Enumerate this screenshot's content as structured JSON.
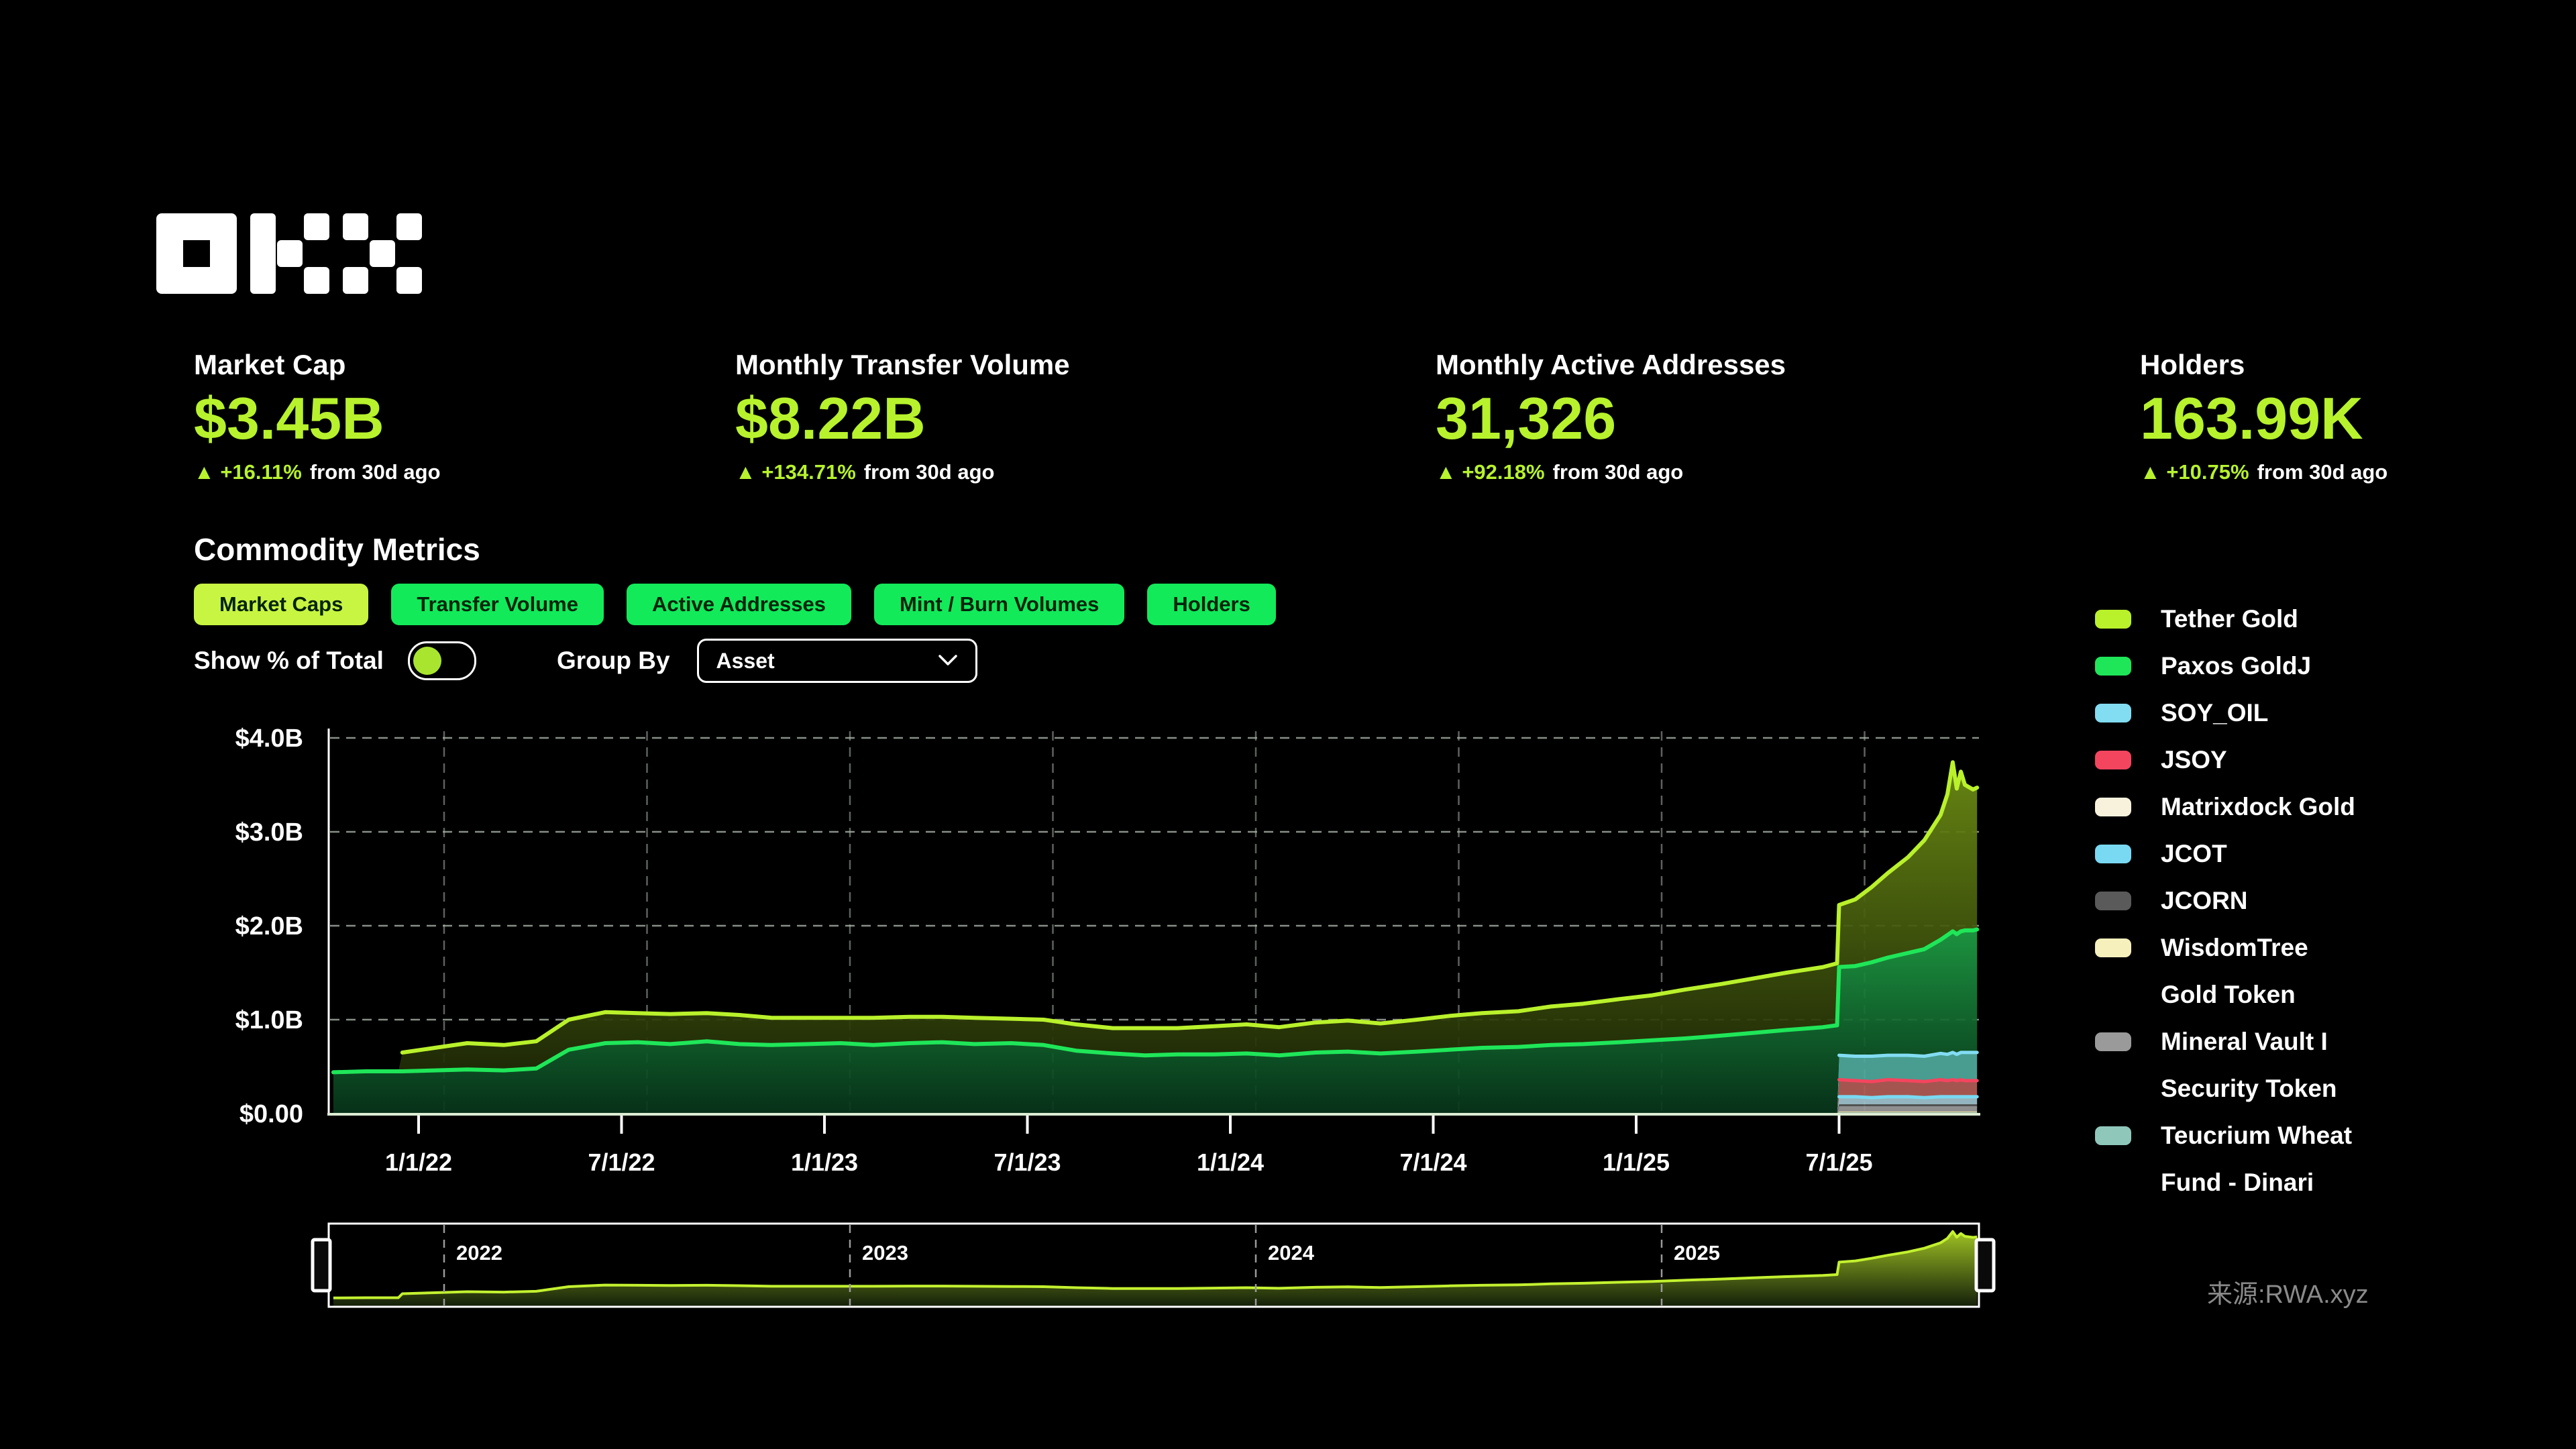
{
  "brand": {
    "name": "OKX"
  },
  "stats": [
    {
      "title": "Market Cap",
      "value": "$3.45B",
      "arrow": "▲",
      "delta": "+16.11%",
      "delta_suffix": "from 30d ago"
    },
    {
      "title": "Monthly Transfer Volume",
      "value": "$8.22B",
      "arrow": "▲",
      "delta": "+134.71%",
      "delta_suffix": "from 30d ago"
    },
    {
      "title": "Monthly Active Addresses",
      "value": "31,326",
      "arrow": "▲",
      "delta": "+92.18%",
      "delta_suffix": "from 30d ago"
    },
    {
      "title": "Holders",
      "value": "163.99K",
      "arrow": "▲",
      "delta": "+10.75%",
      "delta_suffix": "from 30d ago"
    }
  ],
  "section": {
    "title": "Commodity Metrics"
  },
  "tabs": [
    {
      "label": "Market Caps",
      "selected": true
    },
    {
      "label": "Transfer Volume",
      "selected": false
    },
    {
      "label": "Active Addresses",
      "selected": false
    },
    {
      "label": "Mint / Burn Volumes",
      "selected": false
    },
    {
      "label": "Holders",
      "selected": false
    }
  ],
  "controls": {
    "toggle_label": "Show % of Total",
    "toggle_on": false,
    "group_by_label": "Group By",
    "group_by_value": "Asset"
  },
  "source": "来源:RWA.xyz",
  "colors": {
    "background": "#000000",
    "accent": "#b7f22d",
    "tab_green": "#12ea5a",
    "tab_selected": "#c8f542",
    "muted_text": "#8a8a8a",
    "grid": "#a9b3a9",
    "axis_bottom": "#dcecd4"
  },
  "chart_data": {
    "type": "area",
    "stacked": true,
    "title": "Commodity Metrics — Market Caps",
    "unit": "USD billions",
    "ylim": [
      0,
      4
    ],
    "grid": true,
    "legend_position": "right",
    "yticks": [
      {
        "v": 4,
        "label": "$4.0B"
      },
      {
        "v": 3,
        "label": "$3.0B"
      },
      {
        "v": 2,
        "label": "$2.0B"
      },
      {
        "v": 1,
        "label": "$1.0B"
      },
      {
        "v": 0,
        "label": "$0.00"
      }
    ],
    "xticks": [
      {
        "t": 2022.0,
        "label": "1/1/22"
      },
      {
        "t": 2022.5,
        "label": "7/1/22"
      },
      {
        "t": 2023.0,
        "label": "1/1/23"
      },
      {
        "t": 2023.5,
        "label": "7/1/23"
      },
      {
        "t": 2024.0,
        "label": "1/1/24"
      },
      {
        "t": 2024.5,
        "label": "7/1/24"
      },
      {
        "t": 2025.0,
        "label": "1/1/25"
      },
      {
        "t": 2025.5,
        "label": "7/1/25"
      }
    ],
    "brush_years": [
      {
        "t": 2022.0,
        "label": "2022"
      },
      {
        "t": 2023.0,
        "label": "2023"
      },
      {
        "t": 2024.0,
        "label": "2024"
      },
      {
        "t": 2025.0,
        "label": "2025"
      }
    ],
    "x": [
      2021.79,
      2021.87,
      2021.95,
      2021.96,
      2022.04,
      2022.12,
      2022.21,
      2022.29,
      2022.37,
      2022.46,
      2022.54,
      2022.62,
      2022.71,
      2022.79,
      2022.87,
      2022.96,
      2023.04,
      2023.12,
      2023.21,
      2023.29,
      2023.37,
      2023.46,
      2023.54,
      2023.62,
      2023.71,
      2023.79,
      2023.87,
      2023.96,
      2024.04,
      2024.12,
      2024.21,
      2024.29,
      2024.37,
      2024.46,
      2024.54,
      2024.62,
      2024.71,
      2024.79,
      2024.87,
      2024.96,
      2025.04,
      2025.12,
      2025.21,
      2025.29,
      2025.37,
      2025.46,
      2025.495,
      2025.5,
      2025.54,
      2025.58,
      2025.62,
      2025.67,
      2025.71,
      2025.75,
      2025.767,
      2025.78,
      2025.79,
      2025.8,
      2025.81,
      2025.83,
      2025.84
    ],
    "render_order": [
      "teucrium",
      "wisdomtree",
      "mineral",
      "jcorn",
      "jcot",
      "matrixdock",
      "jsoy",
      "soy_oil",
      "paxos",
      "tether"
    ],
    "legend_order": [
      "tether",
      "paxos",
      "soy_oil",
      "jsoy",
      "matrixdock",
      "jcot",
      "jcorn",
      "wisdomtree",
      "mineral",
      "teucrium"
    ],
    "series": {
      "tether": {
        "name": "Tether Gold",
        "legend_lines": [
          "Tether Gold"
        ],
        "line": "#b9f12b",
        "fill_top": "#6e8f14",
        "fill_bottom": "#202b07",
        "stroke_width": 6,
        "values": [
          0,
          0,
          0,
          0.2,
          0.24,
          0.28,
          0.27,
          0.29,
          0.32,
          0.33,
          0.31,
          0.32,
          0.3,
          0.31,
          0.29,
          0.28,
          0.27,
          0.29,
          0.28,
          0.27,
          0.28,
          0.26,
          0.27,
          0.28,
          0.27,
          0.29,
          0.28,
          0.3,
          0.31,
          0.3,
          0.32,
          0.33,
          0.32,
          0.34,
          0.36,
          0.37,
          0.38,
          0.41,
          0.43,
          0.46,
          0.48,
          0.52,
          0.55,
          0.58,
          0.61,
          0.64,
          0.66,
          0.66,
          0.71,
          0.8,
          0.9,
          1.02,
          1.16,
          1.33,
          1.5,
          1.8,
          1.55,
          1.7,
          1.55,
          1.5,
          1.51
        ]
      },
      "paxos": {
        "name": "Paxos GoldJ",
        "legend_lines": [
          "Paxos GoldJ"
        ],
        "line": "#1fe659",
        "fill_top": "#1e9e44",
        "fill_bottom": "#07341a",
        "stroke_width": 6,
        "values": [
          0.44,
          0.45,
          0.45,
          0.45,
          0.46,
          0.47,
          0.46,
          0.48,
          0.68,
          0.75,
          0.76,
          0.74,
          0.77,
          0.74,
          0.73,
          0.74,
          0.75,
          0.73,
          0.75,
          0.76,
          0.74,
          0.75,
          0.73,
          0.67,
          0.64,
          0.62,
          0.63,
          0.63,
          0.64,
          0.62,
          0.65,
          0.66,
          0.64,
          0.66,
          0.68,
          0.7,
          0.71,
          0.73,
          0.74,
          0.76,
          0.78,
          0.8,
          0.83,
          0.86,
          0.89,
          0.92,
          0.94,
          0.94,
          0.96,
          1.0,
          1.04,
          1.09,
          1.14,
          1.21,
          1.27,
          1.29,
          1.28,
          1.29,
          1.3,
          1.3,
          1.31
        ]
      },
      "soy_oil": {
        "name": "SOY_OIL",
        "legend_lines": [
          "SOY_OIL"
        ],
        "line": "#82dcf2",
        "fill": "#4da99b",
        "stroke_width": 5,
        "values": [
          0,
          0,
          0,
          0,
          0,
          0,
          0,
          0,
          0,
          0,
          0,
          0,
          0,
          0,
          0,
          0,
          0,
          0,
          0,
          0,
          0,
          0,
          0,
          0,
          0,
          0,
          0,
          0,
          0,
          0,
          0,
          0,
          0,
          0,
          0,
          0,
          0,
          0,
          0,
          0,
          0,
          0,
          0,
          0,
          0,
          0,
          0,
          0.26,
          0.26,
          0.27,
          0.26,
          0.27,
          0.27,
          0.28,
          0.28,
          0.29,
          0.28,
          0.29,
          0.3,
          0.3,
          0.3
        ]
      },
      "jsoy": {
        "name": "JSOY",
        "legend_lines": [
          "JSOY"
        ],
        "line": "#f4455f",
        "fill": "#b25b55",
        "stroke_width": 5,
        "values": [
          0,
          0,
          0,
          0,
          0,
          0,
          0,
          0,
          0,
          0,
          0,
          0,
          0,
          0,
          0,
          0,
          0,
          0,
          0,
          0,
          0,
          0,
          0,
          0,
          0,
          0,
          0,
          0,
          0,
          0,
          0,
          0,
          0,
          0,
          0,
          0,
          0,
          0,
          0,
          0,
          0,
          0,
          0,
          0,
          0,
          0,
          0,
          0.17,
          0.16,
          0.16,
          0.17,
          0.16,
          0.16,
          0.17,
          0.16,
          0.17,
          0.16,
          0.17,
          0.16,
          0.16,
          0.16
        ]
      },
      "matrixdock": {
        "name": "Matrixdock Gold",
        "legend_lines": [
          "Matrixdock Gold"
        ],
        "line": "#f8f2dd",
        "fill": "#f8f2dd",
        "stroke_width": 0,
        "values": [
          0,
          0,
          0,
          0,
          0,
          0,
          0,
          0,
          0,
          0,
          0,
          0,
          0,
          0,
          0,
          0,
          0,
          0,
          0,
          0,
          0,
          0,
          0,
          0,
          0,
          0,
          0,
          0,
          0,
          0,
          0,
          0,
          0,
          0,
          0,
          0,
          0,
          0,
          0,
          0,
          0,
          0,
          0,
          0,
          0,
          0,
          0,
          0.012,
          0.012,
          0.012,
          0.012,
          0.012,
          0.012,
          0.012,
          0.012,
          0.012,
          0.012,
          0.012,
          0.012,
          0.012,
          0.012
        ]
      },
      "jcot": {
        "name": "JCOT",
        "legend_lines": [
          "JCOT"
        ],
        "line": "#79d9f2",
        "fill": "#9fc3cd",
        "stroke_width": 5,
        "values": [
          0,
          0,
          0,
          0,
          0,
          0,
          0,
          0,
          0,
          0,
          0,
          0,
          0,
          0,
          0,
          0,
          0,
          0,
          0,
          0,
          0,
          0,
          0,
          0,
          0,
          0,
          0,
          0,
          0,
          0,
          0,
          0,
          0,
          0,
          0,
          0,
          0,
          0,
          0,
          0,
          0,
          0,
          0,
          0,
          0,
          0,
          0,
          0.08,
          0.08,
          0.07,
          0.08,
          0.08,
          0.07,
          0.08,
          0.08,
          0.08,
          0.08,
          0.08,
          0.08,
          0.08,
          0.08
        ]
      },
      "jcorn": {
        "name": "JCORN",
        "legend_lines": [
          "JCORN"
        ],
        "line": "#5a5a5a",
        "fill": "#5a5a5a",
        "stroke_width": 0,
        "values": [
          0,
          0,
          0,
          0,
          0,
          0,
          0,
          0,
          0,
          0,
          0,
          0,
          0,
          0,
          0,
          0,
          0,
          0,
          0,
          0,
          0,
          0,
          0,
          0,
          0,
          0,
          0,
          0,
          0,
          0,
          0,
          0,
          0,
          0,
          0,
          0,
          0,
          0,
          0,
          0,
          0,
          0,
          0,
          0,
          0,
          0,
          0,
          0.02,
          0.02,
          0.02,
          0.02,
          0.02,
          0.02,
          0.02,
          0.02,
          0.02,
          0.02,
          0.02,
          0.02,
          0.02,
          0.02
        ]
      },
      "wisdomtree": {
        "name": "WisdomTree Gold Token",
        "legend_lines": [
          "WisdomTree",
          "Gold Token"
        ],
        "line": "#f6f0bc",
        "fill": "#f6f0bc",
        "stroke_width": 0,
        "values": [
          0,
          0,
          0,
          0,
          0,
          0,
          0,
          0,
          0,
          0,
          0,
          0,
          0,
          0,
          0,
          0,
          0,
          0,
          0,
          0,
          0,
          0,
          0,
          0,
          0,
          0,
          0,
          0,
          0,
          0,
          0,
          0,
          0,
          0,
          0,
          0,
          0,
          0,
          0,
          0,
          0,
          0,
          0,
          0,
          0,
          0,
          0,
          0.012,
          0.012,
          0.012,
          0.012,
          0.012,
          0.012,
          0.012,
          0.012,
          0.012,
          0.012,
          0.012,
          0.012,
          0.012,
          0.012
        ]
      },
      "mineral": {
        "name": "Mineral Vault I Security Token",
        "legend_lines": [
          "Mineral Vault I",
          "Security Token"
        ],
        "line": "#9a9a9a",
        "fill": "#9a9a9a",
        "stroke_width": 0,
        "values": [
          0,
          0,
          0,
          0,
          0,
          0,
          0,
          0,
          0,
          0,
          0,
          0,
          0,
          0,
          0,
          0,
          0,
          0,
          0,
          0,
          0,
          0,
          0,
          0,
          0,
          0,
          0,
          0,
          0,
          0,
          0,
          0,
          0,
          0,
          0,
          0,
          0,
          0,
          0,
          0,
          0,
          0,
          0,
          0,
          0,
          0,
          0,
          0.055,
          0.055,
          0.055,
          0.055,
          0.055,
          0.055,
          0.055,
          0.055,
          0.055,
          0.055,
          0.055,
          0.055,
          0.055,
          0.055
        ]
      },
      "teucrium": {
        "name": "Teucrium Wheat Fund - Dinari",
        "legend_lines": [
          "Teucrium Wheat",
          "Fund - Dinari"
        ],
        "line": "#8fc8ba",
        "fill": "#8fc8ba",
        "stroke_width": 0,
        "values": [
          0,
          0,
          0,
          0,
          0,
          0,
          0,
          0,
          0,
          0,
          0,
          0,
          0,
          0,
          0,
          0,
          0,
          0,
          0,
          0,
          0,
          0,
          0,
          0,
          0,
          0,
          0,
          0,
          0,
          0,
          0,
          0,
          0,
          0,
          0,
          0,
          0,
          0,
          0,
          0,
          0,
          0,
          0,
          0,
          0,
          0,
          0,
          0.012,
          0.012,
          0.012,
          0.012,
          0.012,
          0.012,
          0.012,
          0.012,
          0.012,
          0.012,
          0.012,
          0.012,
          0.012,
          0.012
        ]
      }
    }
  }
}
